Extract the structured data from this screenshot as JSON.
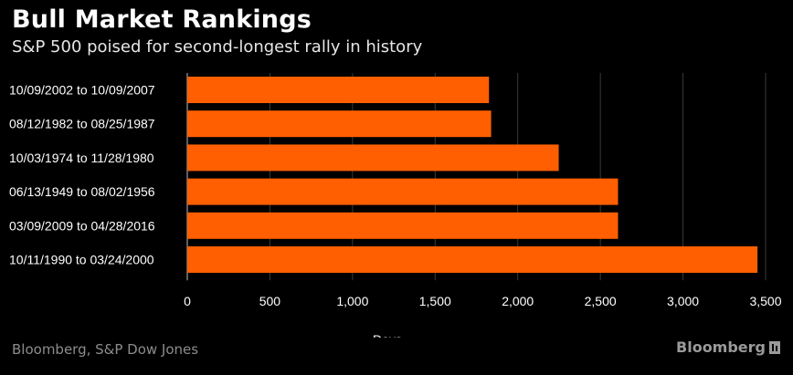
{
  "header": {
    "title": "Bull Market Rankings",
    "subtitle": "S&P 500 poised for second-longest rally in history"
  },
  "footer": {
    "source": "Bloomberg, S&P Dow Jones",
    "brand": "Bloomberg"
  },
  "colors": {
    "bar": "#ff5f00",
    "background": "#000000",
    "gridline": "#3a3a3a"
  },
  "chart_data": {
    "type": "bar",
    "orientation": "horizontal",
    "categories": [
      "10/09/2002 to 10/09/2007",
      "08/12/1982 to 08/25/1987",
      "10/03/1974 to 11/28/1980",
      "06/13/1949 to 08/02/1956",
      "03/09/2009 to 04/28/2016",
      "10/11/1990 to 03/24/2000"
    ],
    "values": [
      1826,
      1839,
      2248,
      2607,
      2607,
      3451
    ],
    "xlabel": "Days",
    "xlim": [
      0,
      3500
    ],
    "xticks": [
      0,
      500,
      1000,
      1500,
      2000,
      2500,
      3000,
      3500
    ],
    "xtick_labels": [
      "0",
      "500",
      "1,000",
      "1,500",
      "2,000",
      "2,500",
      "3,000",
      "3,500"
    ],
    "grid": true
  }
}
